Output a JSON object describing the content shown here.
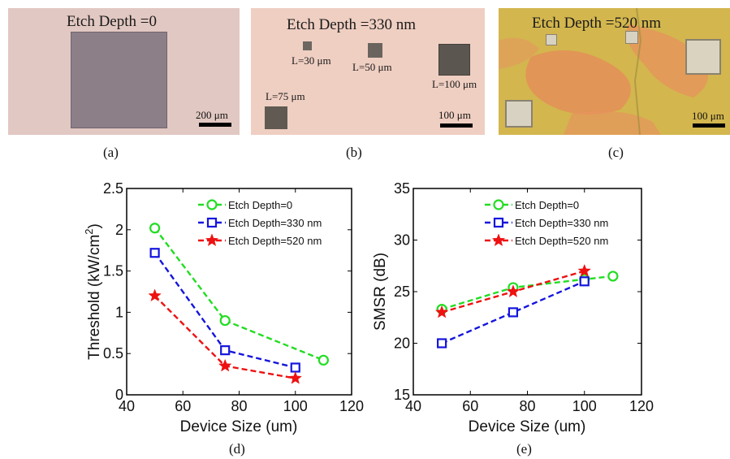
{
  "photos": {
    "a": {
      "title": "Etch Depth =0",
      "scale": "200 μm",
      "caption": "(a)"
    },
    "b": {
      "title": "Etch Depth =330 nm",
      "scale": "100 μm",
      "caption": "(b)",
      "pad_labels": [
        "L=30 μm",
        "L=50 μm",
        "L=100 μm",
        "L=75 μm"
      ]
    },
    "c": {
      "title": "Etch Depth =520 nm",
      "scale": "100 μm",
      "caption": "(c)"
    }
  },
  "chart_data": [
    {
      "type": "line",
      "panel": "d",
      "caption": "(d)",
      "title": "",
      "xlabel": "Device Size (um)",
      "ylabel": "Threshold (kW/cm²)",
      "ylabel_main": "Threshold (kW/cm",
      "ylabel_sup": "2",
      "ylabel_end": ")",
      "xlim": [
        40,
        120
      ],
      "ylim": [
        0,
        2.5
      ],
      "xticks": [
        "40",
        "60",
        "80",
        "100",
        "120"
      ],
      "yticks": [
        "0",
        "0.5",
        "1",
        "1.5",
        "2",
        "2.5"
      ],
      "legend_position": "top-right",
      "series": [
        {
          "name": "Etch Depth=0",
          "color": "#22dd22",
          "marker": "circle",
          "x": [
            50,
            75,
            110
          ],
          "values": [
            2.02,
            0.9,
            0.42
          ]
        },
        {
          "name": "Etch Depth=330 nm",
          "color": "#1515dd",
          "marker": "square",
          "x": [
            50,
            75,
            100
          ],
          "values": [
            1.72,
            0.54,
            0.33
          ]
        },
        {
          "name": "Etch Depth=520 nm",
          "color": "#ee1111",
          "marker": "star",
          "x": [
            50,
            75,
            100
          ],
          "values": [
            1.2,
            0.35,
            0.2
          ]
        }
      ]
    },
    {
      "type": "line",
      "panel": "e",
      "caption": "(e)",
      "title": "",
      "xlabel": "Device Size (um)",
      "ylabel": "SMSR (dB)",
      "xlim": [
        40,
        120
      ],
      "ylim": [
        15,
        35
      ],
      "xticks": [
        "40",
        "60",
        "80",
        "100",
        "120"
      ],
      "yticks": [
        "15",
        "20",
        "25",
        "30",
        "35"
      ],
      "legend_position": "top-right",
      "series": [
        {
          "name": "Etch Depth=0",
          "color": "#22dd22",
          "marker": "circle",
          "x": [
            50,
            75,
            100,
            110
          ],
          "values": [
            23.3,
            25.4,
            26.2,
            26.5
          ]
        },
        {
          "name": "Etch Depth=330 nm",
          "color": "#1515dd",
          "marker": "square",
          "x": [
            50,
            75,
            100
          ],
          "values": [
            20,
            23,
            26
          ]
        },
        {
          "name": "Etch Depth=520 nm",
          "color": "#ee1111",
          "marker": "star",
          "x": [
            50,
            75,
            100
          ],
          "values": [
            23,
            25,
            27
          ]
        }
      ]
    }
  ]
}
